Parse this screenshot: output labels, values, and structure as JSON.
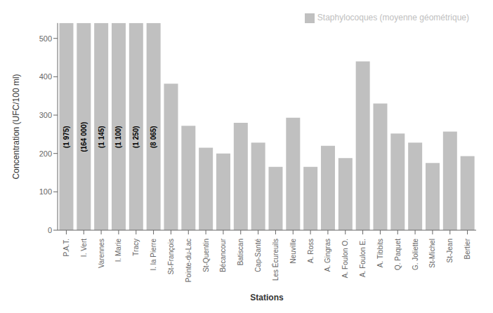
{
  "chart_data": {
    "type": "bar",
    "categories": [
      "P.A.T.",
      "I. Vert",
      "Varennes",
      "I. Marie",
      "Tracy",
      "I. la Pierre",
      "St-François",
      "Pointe-du-Lac",
      "St-Quentin",
      "Bécancour",
      "Batiscan",
      "Cap-Santé",
      "Les Écureuils",
      "Neuville",
      "A. Ross",
      "A. Gingras",
      "A. Foulon O.",
      "A. Foulon E.",
      "A. Tibbits",
      "Q. Paquet",
      "G. Joliette",
      "St-Michel",
      "St-Jean",
      "Bertier"
    ],
    "series": [
      {
        "name": "Staphylocoques (moyenne géométrique)",
        "color": "#C0C0C0",
        "values": [
          540,
          540,
          540,
          540,
          540,
          540,
          382,
          272,
          215,
          200,
          280,
          228,
          165,
          293,
          165,
          220,
          188,
          440,
          330,
          252,
          228,
          175,
          257,
          193
        ]
      }
    ],
    "annotations": [
      "(1 975)",
      "(164 000)",
      "(1 145)",
      "(1 100)",
      "(1 250)",
      "(8 065)",
      null,
      null,
      null,
      null,
      null,
      null,
      null,
      null,
      null,
      null,
      null,
      null,
      null,
      null,
      null,
      null,
      null,
      null
    ],
    "xlabel": "Stations",
    "ylabel": "Concentration (UFC/100 ml)",
    "ylim": [
      0,
      540
    ],
    "yticks": [
      0,
      100,
      200,
      300,
      400,
      500
    ],
    "grid": false,
    "legend": "upper right"
  }
}
